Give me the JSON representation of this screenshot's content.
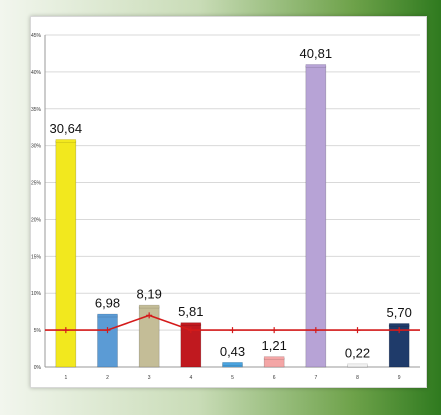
{
  "chart_data": {
    "type": "bar",
    "title": "",
    "xlabel": "",
    "ylabel": "",
    "categories": [
      "1",
      "2",
      "3",
      "4",
      "5",
      "6",
      "7",
      "8",
      "9"
    ],
    "values": [
      30.64,
      6.98,
      8.19,
      5.81,
      0.43,
      1.21,
      40.81,
      0.22,
      5.7
    ],
    "value_labels": [
      "30,64",
      "6,98",
      "8,19",
      "5,81",
      "0,43",
      "1,21",
      "40,81",
      "0,22",
      "5,70"
    ],
    "bar_colors": [
      "#f2e81e",
      "#5b9bd5",
      "#c4bd97",
      "#c0191f",
      "#4aa3df",
      "#f4a6a6",
      "#b7a3d6",
      "#f2f2f2",
      "#1f3b6a"
    ],
    "line_series": {
      "values": [
        5,
        5,
        7,
        5,
        5,
        5,
        5,
        5,
        5
      ],
      "color": "#d41a1a"
    },
    "ylim": [
      0,
      45
    ],
    "yticks": [
      0,
      5,
      10,
      15,
      20,
      25,
      30,
      35,
      40,
      45
    ],
    "ytick_labels": [
      "0%",
      "5%",
      "10%",
      "15%",
      "20%",
      "25%",
      "30%",
      "35%",
      "40%",
      "45%"
    ],
    "grid": true,
    "legend": "none"
  }
}
